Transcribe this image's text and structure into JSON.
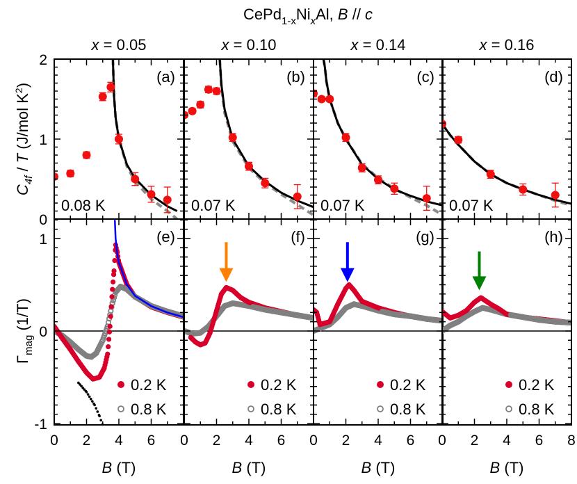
{
  "title": {
    "p1": "CePd",
    "s1": "1-x",
    "p2": "Ni",
    "s2": "x",
    "p3": "Al, ",
    "B": "B",
    "p4": " // ",
    "c": "c"
  },
  "y_labels": {
    "top": {
      "C": "C",
      "sub": "4f",
      "mid": " / ",
      "T": "T",
      "unit": " (J/mol K",
      "sup": "2",
      "close": ")"
    },
    "bottom": {
      "G": "Γ",
      "sub": "mag",
      "unit": "  (1/T)"
    }
  },
  "x_label": {
    "B": "B",
    "unit": " (T)"
  },
  "y_ticks_top": [
    "2",
    "1",
    "0"
  ],
  "y_ticks_bottom": [
    "1",
    "0",
    "-1"
  ],
  "x_ticks": [
    "0",
    "2",
    "4",
    "6",
    "8"
  ],
  "colors": {
    "red_top": "#f01010",
    "red_bottom": "#d8002a",
    "gray": "#808080",
    "fit": "#000000",
    "fit_dashed": "#8c8c8c",
    "blue_line": "#0000ff"
  },
  "columns": [
    {
      "x_var": "x",
      "x_eq": " = 0.05"
    },
    {
      "x_var": "x",
      "x_eq": " = 0.10"
    },
    {
      "x_var": "x",
      "x_eq": " = 0.14"
    },
    {
      "x_var": "x",
      "x_eq": " = 0.16"
    }
  ],
  "chart_data": [
    {
      "panel": "(a)",
      "type": "scatter",
      "temperature": "0.08 K",
      "xlim": [
        0,
        8
      ],
      "ylim": [
        0,
        2
      ],
      "points": [
        [
          0,
          0.53,
          0.03
        ],
        [
          1,
          0.57,
          0.04
        ],
        [
          2,
          0.8,
          0.04
        ],
        [
          3,
          1.53,
          0.05
        ],
        [
          3.5,
          1.65,
          0.06
        ],
        [
          4,
          1.0,
          0.06
        ],
        [
          5,
          0.5,
          0.08
        ],
        [
          6,
          0.31,
          0.1
        ],
        [
          7,
          0.24,
          0.16
        ]
      ],
      "fit_solid": [
        [
          3.63,
          2.0
        ],
        [
          3.7,
          1.54
        ],
        [
          3.8,
          1.27
        ],
        [
          4,
          1.0
        ],
        [
          4.5,
          0.68
        ],
        [
          5,
          0.51
        ],
        [
          6,
          0.3
        ],
        [
          7,
          0.16
        ],
        [
          7.6,
          0.1
        ]
      ],
      "fit_dashed": [
        [
          3.63,
          2.0
        ],
        [
          3.7,
          1.54
        ],
        [
          3.8,
          1.27
        ],
        [
          4,
          1.0
        ],
        [
          4.5,
          0.66
        ],
        [
          5,
          0.47
        ],
        [
          6,
          0.25
        ],
        [
          7,
          0.1
        ],
        [
          7.6,
          0.0
        ]
      ]
    },
    {
      "panel": "(b)",
      "type": "scatter",
      "temperature": "0.07 K",
      "xlim": [
        0,
        8
      ],
      "ylim": [
        0,
        2
      ],
      "points": [
        [
          0,
          1.3,
          0.03
        ],
        [
          0.5,
          1.35,
          0.03
        ],
        [
          1,
          1.43,
          0.04
        ],
        [
          1.5,
          1.62,
          0.04
        ],
        [
          2,
          1.6,
          0.04
        ],
        [
          3,
          1.02,
          0.05
        ],
        [
          4,
          0.66,
          0.05
        ],
        [
          5,
          0.45,
          0.06
        ],
        [
          7,
          0.28,
          0.15
        ]
      ],
      "fit_solid": [
        [
          2.2,
          2.0
        ],
        [
          2.3,
          1.68
        ],
        [
          2.5,
          1.37
        ],
        [
          3,
          1.0
        ],
        [
          4,
          0.66
        ],
        [
          5,
          0.47
        ],
        [
          6,
          0.33
        ],
        [
          7,
          0.23
        ],
        [
          8,
          0.15
        ]
      ],
      "fit_dashed": [
        [
          2.2,
          2.0
        ],
        [
          2.3,
          1.65
        ],
        [
          2.5,
          1.33
        ],
        [
          3,
          0.97
        ],
        [
          4,
          0.64
        ],
        [
          5,
          0.45
        ],
        [
          6,
          0.31
        ],
        [
          7,
          0.18
        ],
        [
          8,
          0.05
        ]
      ]
    },
    {
      "panel": "(c)",
      "type": "scatter",
      "temperature": "0.07 K",
      "xlim": [
        0,
        8
      ],
      "ylim": [
        0,
        2
      ],
      "points": [
        [
          0,
          1.57,
          0.04
        ],
        [
          0.5,
          1.5,
          0.03
        ],
        [
          1,
          1.5,
          0.03
        ],
        [
          2,
          1.02,
          0.05
        ],
        [
          3,
          0.64,
          0.05
        ],
        [
          4,
          0.49,
          0.05
        ],
        [
          5,
          0.38,
          0.07
        ],
        [
          7,
          0.26,
          0.15
        ]
      ],
      "fit_solid": [
        [
          0.62,
          2.0
        ],
        [
          0.7,
          1.9
        ],
        [
          0.8,
          1.72
        ],
        [
          1,
          1.5
        ],
        [
          1.5,
          1.2
        ],
        [
          2,
          1.0
        ],
        [
          3,
          0.68
        ],
        [
          4,
          0.5
        ],
        [
          5,
          0.37
        ],
        [
          6,
          0.29
        ],
        [
          7,
          0.22
        ],
        [
          8,
          0.17
        ]
      ],
      "fit_dashed": [
        [
          0.62,
          2.0
        ],
        [
          0.7,
          1.9
        ],
        [
          0.8,
          1.72
        ],
        [
          1,
          1.5
        ],
        [
          1.5,
          1.2
        ],
        [
          2,
          1.0
        ],
        [
          3,
          0.69
        ],
        [
          4,
          0.51
        ],
        [
          5,
          0.38
        ],
        [
          6,
          0.27
        ],
        [
          7,
          0.17
        ],
        [
          8,
          0.05
        ]
      ]
    },
    {
      "panel": "(d)",
      "type": "scatter",
      "temperature": "0.07 K",
      "xlim": [
        0,
        8
      ],
      "ylim": [
        0,
        2
      ],
      "points": [
        [
          0,
          1.19,
          0.03
        ],
        [
          1,
          0.99,
          0.04
        ],
        [
          3,
          0.56,
          0.05
        ],
        [
          5,
          0.37,
          0.07
        ],
        [
          7,
          0.3,
          0.15
        ]
      ],
      "fit_solid": [
        [
          0,
          1.19
        ],
        [
          0.5,
          1.05
        ],
        [
          1,
          0.93
        ],
        [
          2,
          0.72
        ],
        [
          3,
          0.56
        ],
        [
          4,
          0.45
        ],
        [
          5,
          0.37
        ],
        [
          6,
          0.3
        ],
        [
          7,
          0.24
        ],
        [
          8,
          0.19
        ]
      ],
      "fit_dashed": [
        [
          0,
          1.19
        ],
        [
          0.5,
          1.05
        ],
        [
          1,
          0.93
        ],
        [
          2,
          0.72
        ],
        [
          3,
          0.56
        ],
        [
          4,
          0.45
        ],
        [
          5,
          0.37
        ],
        [
          6,
          0.3
        ],
        [
          7,
          0.23
        ],
        [
          8,
          0.17
        ]
      ]
    },
    {
      "panel": "(e)",
      "type": "scatter",
      "xlim": [
        0,
        8
      ],
      "ylim": [
        -1,
        1.2
      ],
      "series": [
        {
          "name": "0.2 K",
          "points": [
            [
              0,
              0.05
            ],
            [
              0.5,
              -0.08
            ],
            [
              1,
              -0.2
            ],
            [
              1.5,
              -0.33
            ],
            [
              2,
              -0.45
            ],
            [
              2.4,
              -0.52
            ],
            [
              2.8,
              -0.5
            ],
            [
              3.1,
              -0.4
            ],
            [
              3.3,
              -0.25
            ],
            [
              3.45,
              0.05
            ],
            [
              3.6,
              0.45
            ],
            [
              3.7,
              0.65
            ],
            [
              3.8,
              0.93
            ],
            [
              3.9,
              0.85
            ],
            [
              4,
              0.74
            ],
            [
              4.5,
              0.5
            ],
            [
              5,
              0.37
            ],
            [
              6,
              0.26
            ],
            [
              7,
              0.2
            ],
            [
              8,
              0.15
            ]
          ]
        },
        {
          "name": "0.8 K",
          "points": [
            [
              0,
              0
            ],
            [
              0.5,
              -0.05
            ],
            [
              1,
              -0.12
            ],
            [
              1.5,
              -0.2
            ],
            [
              2,
              -0.27
            ],
            [
              2.3,
              -0.28
            ],
            [
              2.6,
              -0.24
            ],
            [
              3,
              -0.1
            ],
            [
              3.3,
              0.05
            ],
            [
              3.6,
              0.3
            ],
            [
              3.8,
              0.42
            ],
            [
              4.1,
              0.48
            ],
            [
              4.5,
              0.45
            ],
            [
              5,
              0.37
            ],
            [
              6,
              0.27
            ],
            [
              7,
              0.21
            ],
            [
              8,
              0.16
            ]
          ]
        }
      ],
      "blue_line": [
        [
          3.75,
          1.2
        ],
        [
          3.8,
          1.0
        ],
        [
          3.9,
          0.83
        ],
        [
          4,
          0.74
        ],
        [
          4.5,
          0.5
        ],
        [
          5,
          0.38
        ],
        [
          6,
          0.27
        ],
        [
          7,
          0.2
        ],
        [
          8,
          0.15
        ]
      ],
      "dotted_line": [
        [
          1.5,
          -0.56
        ],
        [
          2,
          -0.66
        ],
        [
          2.5,
          -0.8
        ],
        [
          2.8,
          -0.92
        ],
        [
          3.0,
          -1.02
        ]
      ]
    },
    {
      "panel": "(f)",
      "type": "scatter",
      "xlim": [
        0,
        8
      ],
      "ylim": [
        -1,
        1.2
      ],
      "series": [
        {
          "name": "0.2 K",
          "points": [
            [
              0.4,
              -0.07
            ],
            [
              0.7,
              -0.12
            ],
            [
              1,
              -0.15
            ],
            [
              1.3,
              -0.13
            ],
            [
              1.6,
              -0.02
            ],
            [
              2,
              0.22
            ],
            [
              2.3,
              0.4
            ],
            [
              2.6,
              0.47
            ],
            [
              3,
              0.44
            ],
            [
              3.5,
              0.36
            ],
            [
              4,
              0.31
            ],
            [
              5,
              0.25
            ],
            [
              6,
              0.21
            ],
            [
              7,
              0.17
            ],
            [
              8,
              0.14
            ]
          ]
        },
        {
          "name": "0.8 K",
          "points": [
            [
              0,
              0
            ],
            [
              0.5,
              -0.03
            ],
            [
              1,
              -0.02
            ],
            [
              1.5,
              0.05
            ],
            [
              2,
              0.16
            ],
            [
              2.5,
              0.27
            ],
            [
              3,
              0.3
            ],
            [
              4,
              0.27
            ],
            [
              5,
              0.23
            ],
            [
              6,
              0.2
            ],
            [
              7,
              0.17
            ],
            [
              8,
              0.14
            ]
          ]
        }
      ],
      "arrow": {
        "B": 2.6,
        "from": 0.96,
        "to": 0.53,
        "color": "#ff8000"
      }
    },
    {
      "panel": "(g)",
      "type": "scatter",
      "xlim": [
        0,
        8
      ],
      "ylim": [
        -1,
        1.2
      ],
      "series": [
        {
          "name": "0.2 K",
          "points": [
            [
              0,
              0.23
            ],
            [
              0.2,
              0.2
            ],
            [
              0.4,
              0.07
            ],
            [
              1,
              0.1
            ],
            [
              1.5,
              0.29
            ],
            [
              2,
              0.46
            ],
            [
              2.2,
              0.5
            ],
            [
              2.5,
              0.44
            ],
            [
              3,
              0.32
            ],
            [
              4,
              0.25
            ],
            [
              5,
              0.2
            ],
            [
              6,
              0.16
            ],
            [
              7,
              0.13
            ],
            [
              8,
              0.11
            ]
          ]
        },
        {
          "name": "0.8 K",
          "points": [
            [
              0,
              0
            ],
            [
              1,
              0.07
            ],
            [
              1.5,
              0.15
            ],
            [
              2,
              0.25
            ],
            [
              2.5,
              0.29
            ],
            [
              3,
              0.27
            ],
            [
              4,
              0.22
            ],
            [
              5,
              0.18
            ],
            [
              6,
              0.16
            ],
            [
              7,
              0.13
            ],
            [
              8,
              0.11
            ]
          ]
        }
      ],
      "arrow": {
        "B": 2.1,
        "from": 0.96,
        "to": 0.53,
        "color": "#0000ff"
      }
    },
    {
      "panel": "(h)",
      "type": "scatter",
      "xlim": [
        0,
        8
      ],
      "ylim": [
        -1,
        1.2
      ],
      "series": [
        {
          "name": "0.2 K",
          "points": [
            [
              0,
              0.21
            ],
            [
              0.5,
              0.14
            ],
            [
              1,
              0.17
            ],
            [
              1.5,
              0.22
            ],
            [
              2,
              0.31
            ],
            [
              2.4,
              0.36
            ],
            [
              3,
              0.29
            ],
            [
              3.5,
              0.24
            ],
            [
              4,
              0.18
            ],
            [
              5,
              0.15
            ],
            [
              6,
              0.13
            ],
            [
              7,
              0.11
            ],
            [
              8,
              0.09
            ]
          ]
        },
        {
          "name": "0.8 K",
          "points": [
            [
              0,
              0
            ],
            [
              0.5,
              0.06
            ],
            [
              1,
              0.1
            ],
            [
              1.5,
              0.16
            ],
            [
              2,
              0.21
            ],
            [
              2.5,
              0.25
            ],
            [
              3,
              0.23
            ],
            [
              4,
              0.18
            ],
            [
              5,
              0.15
            ],
            [
              6,
              0.12
            ],
            [
              7,
              0.1
            ],
            [
              8,
              0.09
            ]
          ]
        }
      ],
      "arrow": {
        "B": 2.3,
        "from": 0.86,
        "to": 0.44,
        "color": "#008000"
      }
    }
  ]
}
